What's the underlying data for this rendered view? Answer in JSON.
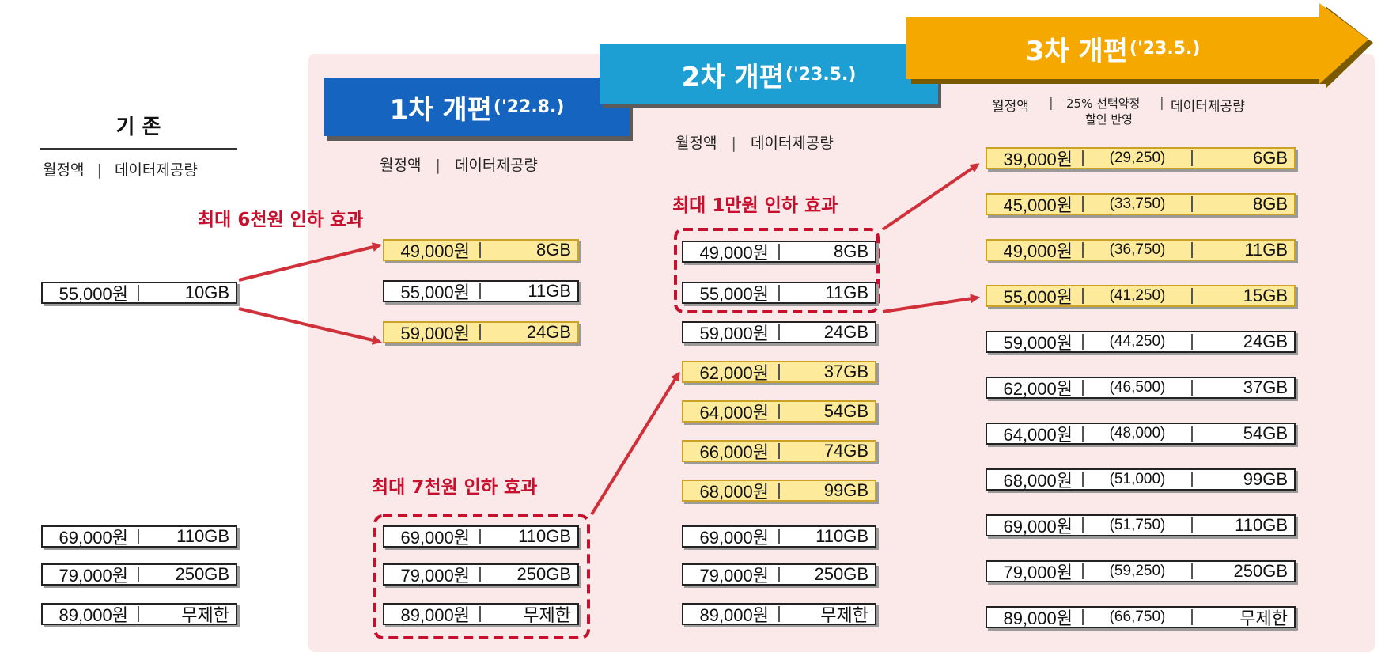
{
  "baseline": {
    "title": "기 존",
    "header": [
      "월정액",
      "데이터제공량"
    ],
    "plans": [
      {
        "price": "55,000원",
        "data": "10GB"
      },
      {
        "price": "69,000원",
        "data": "110GB"
      },
      {
        "price": "79,000원",
        "data": "250GB"
      },
      {
        "price": "89,000원",
        "data": "무제한"
      }
    ]
  },
  "stage1": {
    "title": "1차 개편",
    "date": "('22.8.)",
    "header": [
      "월정액",
      "데이터제공량"
    ],
    "effect_a": "최대 6천원 인하 효과",
    "effect_b": "최대 7천원 인하 효과",
    "plans": [
      {
        "price": "49,000원",
        "data": "8GB",
        "new": true
      },
      {
        "price": "55,000원",
        "data": "11GB",
        "new": false
      },
      {
        "price": "59,000원",
        "data": "24GB",
        "new": true
      },
      {
        "price": "69,000원",
        "data": "110GB",
        "new": false
      },
      {
        "price": "79,000원",
        "data": "250GB",
        "new": false
      },
      {
        "price": "89,000원",
        "data": "무제한",
        "new": false
      }
    ]
  },
  "stage2": {
    "title": "2차 개편",
    "date": "('23.5.)",
    "header": [
      "월정액",
      "데이터제공량"
    ],
    "effect": "최대 1만원 인하 효과",
    "plans": [
      {
        "price": "49,000원",
        "data": "8GB",
        "new": false
      },
      {
        "price": "55,000원",
        "data": "11GB",
        "new": false
      },
      {
        "price": "59,000원",
        "data": "24GB",
        "new": false
      },
      {
        "price": "62,000원",
        "data": "37GB",
        "new": true
      },
      {
        "price": "64,000원",
        "data": "54GB",
        "new": true
      },
      {
        "price": "66,000원",
        "data": "74GB",
        "new": true
      },
      {
        "price": "68,000원",
        "data": "99GB",
        "new": true
      },
      {
        "price": "69,000원",
        "data": "110GB",
        "new": false
      },
      {
        "price": "79,000원",
        "data": "250GB",
        "new": false
      },
      {
        "price": "89,000원",
        "data": "무제한",
        "new": false
      }
    ]
  },
  "stage3": {
    "title": "3차 개편",
    "date": "('23.5.)",
    "header_price": "월정액",
    "header_discount_line1": "25% 선택약정",
    "header_discount_line2": "할인 반영",
    "header_data": "데이터제공량",
    "plans": [
      {
        "price": "39,000원",
        "disc": "(29,250)",
        "data": "6GB",
        "new": true
      },
      {
        "price": "45,000원",
        "disc": "(33,750)",
        "data": "8GB",
        "new": true
      },
      {
        "price": "49,000원",
        "disc": "(36,750)",
        "data": "11GB",
        "new": true
      },
      {
        "price": "55,000원",
        "disc": "(41,250)",
        "data": "15GB",
        "new": true
      },
      {
        "price": "59,000원",
        "disc": "(44,250)",
        "data": "24GB",
        "new": false
      },
      {
        "price": "62,000원",
        "disc": "(46,500)",
        "data": "37GB",
        "new": false
      },
      {
        "price": "64,000원",
        "disc": "(48,000)",
        "data": "54GB",
        "new": false
      },
      {
        "price": "68,000원",
        "disc": "(51,000)",
        "data": "99GB",
        "new": false
      },
      {
        "price": "69,000원",
        "disc": "(51,750)",
        "data": "110GB",
        "new": false
      },
      {
        "price": "79,000원",
        "disc": "(59,250)",
        "data": "250GB",
        "new": false
      },
      {
        "price": "89,000원",
        "disc": "(66,750)",
        "data": "무제한",
        "new": false
      }
    ]
  },
  "colors": {
    "panel_bg": "#fbe9e9",
    "stage1_ribbon": "#1565c0",
    "stage2_ribbon": "#1e9fd4",
    "stage3_ribbon": "#f5a800",
    "highlight_box": "#fdea9b",
    "effect_red": "#c8102e"
  }
}
